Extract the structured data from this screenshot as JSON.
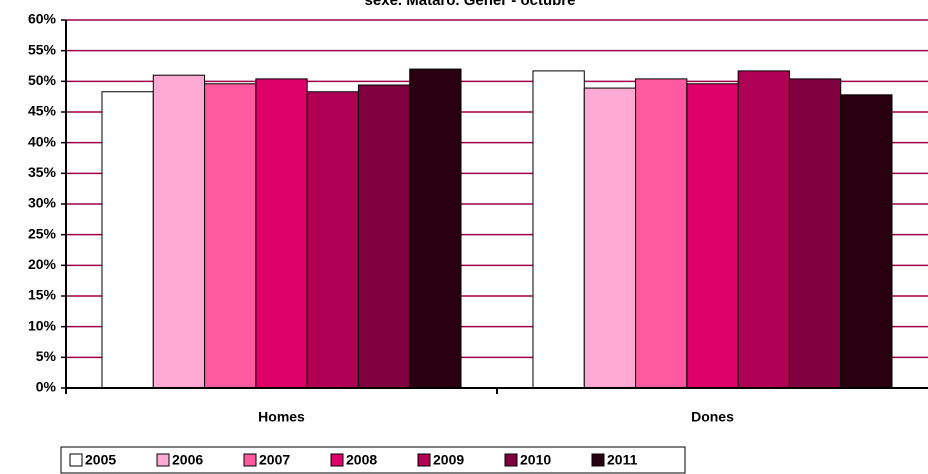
{
  "chart_data": {
    "type": "bar",
    "title": "sexe. Mataró. Gener - octubre",
    "categories": [
      "Homes",
      "Dones"
    ],
    "series": [
      {
        "name": "2005",
        "color": "#ffffff",
        "values": [
          48.3,
          51.7
        ]
      },
      {
        "name": "2006",
        "color": "#ffaad4",
        "values": [
          51.0,
          48.9
        ]
      },
      {
        "name": "2007",
        "color": "#ff5aa0",
        "values": [
          49.6,
          50.4
        ]
      },
      {
        "name": "2008",
        "color": "#e0006a",
        "values": [
          50.4,
          49.6
        ]
      },
      {
        "name": "2009",
        "color": "#b00055",
        "values": [
          48.3,
          51.7
        ]
      },
      {
        "name": "2010",
        "color": "#800040",
        "values": [
          49.4,
          50.4
        ]
      },
      {
        "name": "2011",
        "color": "#280010",
        "values": [
          52.0,
          47.8
        ]
      }
    ],
    "ylim": [
      0,
      60
    ],
    "yticks": [
      {
        "value": 0,
        "label": "0%"
      },
      {
        "value": 5,
        "label": "5%"
      },
      {
        "value": 10,
        "label": "10%"
      },
      {
        "value": 15,
        "label": "15%"
      },
      {
        "value": 20,
        "label": "20%"
      },
      {
        "value": 25,
        "label": "25%"
      },
      {
        "value": 30,
        "label": "30%"
      },
      {
        "value": 35,
        "label": "35%"
      },
      {
        "value": 40,
        "label": "40%"
      },
      {
        "value": 45,
        "label": "45%"
      },
      {
        "value": 50,
        "label": "50%"
      },
      {
        "value": 55,
        "label": "55%"
      },
      {
        "value": 60,
        "label": "60%"
      }
    ],
    "grid": true,
    "grid_color": "#a0004a",
    "legend": "bottom"
  }
}
